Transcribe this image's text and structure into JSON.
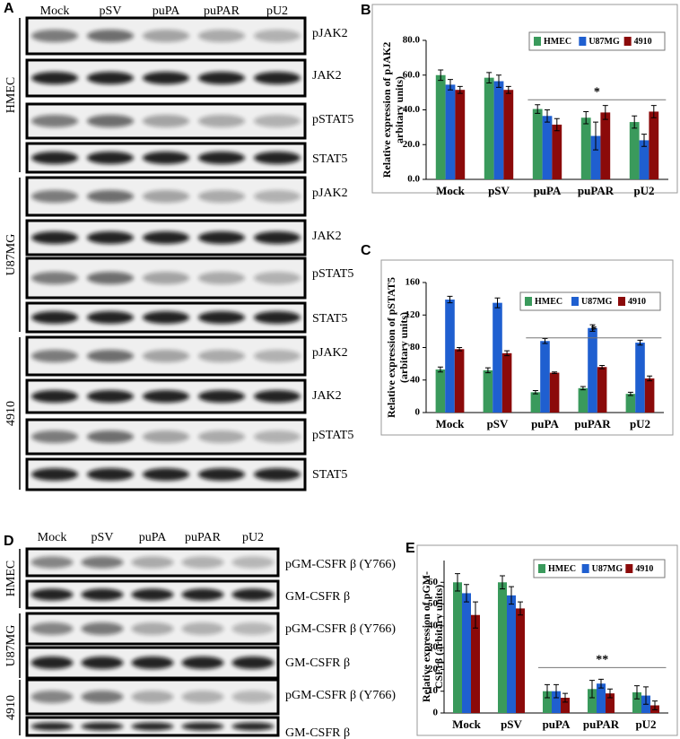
{
  "panel_labels": [
    "A",
    "B",
    "C",
    "D",
    "E"
  ],
  "blot_a": {
    "lanes": [
      "Mock",
      "pSV",
      "puPA",
      "puPAR",
      "pU2"
    ],
    "groups": [
      {
        "name": "HMEC",
        "rows": [
          "pJAK2",
          "JAK2",
          "pSTAT5",
          "STAT5"
        ]
      },
      {
        "name": "U87MG",
        "rows": [
          "pJAK2",
          "JAK2",
          "pSTAT5",
          "STAT5"
        ]
      },
      {
        "name": "4910",
        "rows": [
          "pJAK2",
          "JAK2",
          "pSTAT5",
          "STAT5"
        ]
      }
    ]
  },
  "blot_d": {
    "lanes": [
      "Mock",
      "pSV",
      "puPA",
      "puPAR",
      "pU2"
    ],
    "groups": [
      {
        "name": "HMEC",
        "rows": [
          "pGM-CSFR β (Y766)",
          "GM-CSFR β"
        ]
      },
      {
        "name": "U87MG",
        "rows": [
          "pGM-CSFR β (Y766)",
          "GM-CSFR β"
        ]
      },
      {
        "name": "4910",
        "rows": [
          "pGM-CSFR β (Y766)",
          "GM-CSFR β"
        ]
      }
    ]
  },
  "chart_data": [
    {
      "type": "bar",
      "ylabel": [
        "Relative expression of pJAK2",
        "arbitary units)"
      ],
      "categories": [
        "Mock",
        "pSV",
        "puPA",
        "puPAR",
        "pU2"
      ],
      "series": [
        {
          "name": "HMEC",
          "color": "#3a9a5c",
          "values": [
            60,
            58.5,
            40.5,
            35.5,
            33
          ],
          "errors": [
            3,
            3,
            2.5,
            3.5,
            3.5
          ]
        },
        {
          "name": "U87MG",
          "color": "#1f5fd0",
          "values": [
            54.5,
            56.5,
            36.5,
            25,
            22.5
          ],
          "errors": [
            3,
            3.5,
            3.5,
            8,
            3.5
          ]
        },
        {
          "name": "4910",
          "color": "#8b0a0a",
          "values": [
            51.5,
            51.5,
            31.5,
            38.5,
            39
          ],
          "errors": [
            2,
            2,
            3.5,
            4,
            3.5
          ]
        }
      ],
      "ylim": [
        0,
        80
      ],
      "yticks": [
        {
          "value": 0,
          "label": "0.0"
        },
        {
          "value": 20,
          "label": "20.0"
        },
        {
          "value": 40,
          "label": "40.0"
        },
        {
          "value": 60,
          "label": "60.0"
        },
        {
          "value": 80,
          "label": "80.0"
        }
      ],
      "annotation": "*",
      "legend": "top-right"
    },
    {
      "type": "bar",
      "ylabel": [
        "Relative expression of pSTAT5",
        "(arbitary units)"
      ],
      "categories": [
        "Mock",
        "pSV",
        "puPA",
        "puPAR",
        "pU2"
      ],
      "series": [
        {
          "name": "HMEC",
          "color": "#3a9a5c",
          "values": [
            53,
            52,
            25,
            30,
            23
          ],
          "errors": [
            3,
            3,
            2,
            2,
            2
          ]
        },
        {
          "name": "U87MG",
          "color": "#1f5fd0",
          "values": [
            139,
            135,
            88,
            104,
            86
          ],
          "errors": [
            4,
            6,
            3,
            4,
            3
          ]
        },
        {
          "name": "4910",
          "color": "#8b0a0a",
          "values": [
            78,
            73,
            49,
            56,
            42
          ],
          "errors": [
            2,
            3,
            1,
            2,
            3
          ]
        }
      ],
      "ylim": [
        0,
        160
      ],
      "yticks": [
        0,
        40,
        80,
        120,
        160
      ],
      "annotation": "*",
      "legend": "top-right"
    },
    {
      "type": "bar",
      "ylabel": [
        "Relative expression of pGM-",
        "CSFrβ (arbitary units)"
      ],
      "categories": [
        "Mock",
        "pSV",
        "puPA",
        "puPAR",
        "pU2"
      ],
      "series": [
        {
          "name": "HMEC",
          "color": "#3a9a5c",
          "values": [
            60,
            60,
            10,
            11,
            9.5
          ],
          "errors": [
            4,
            3,
            3,
            4,
            3
          ]
        },
        {
          "name": "U87MG",
          "color": "#1f5fd0",
          "values": [
            55,
            54,
            10,
            13.5,
            8
          ],
          "errors": [
            4,
            4,
            3,
            2,
            4
          ]
        },
        {
          "name": "4910",
          "color": "#8b0a0a",
          "values": [
            45,
            48,
            7,
            9,
            3.5
          ],
          "errors": [
            6,
            3,
            2,
            2,
            2
          ]
        }
      ],
      "ylim": [
        0,
        70
      ],
      "yticks": [
        0,
        10,
        20,
        30,
        40,
        50,
        60
      ],
      "annotation": "**",
      "legend": "top-right"
    }
  ]
}
